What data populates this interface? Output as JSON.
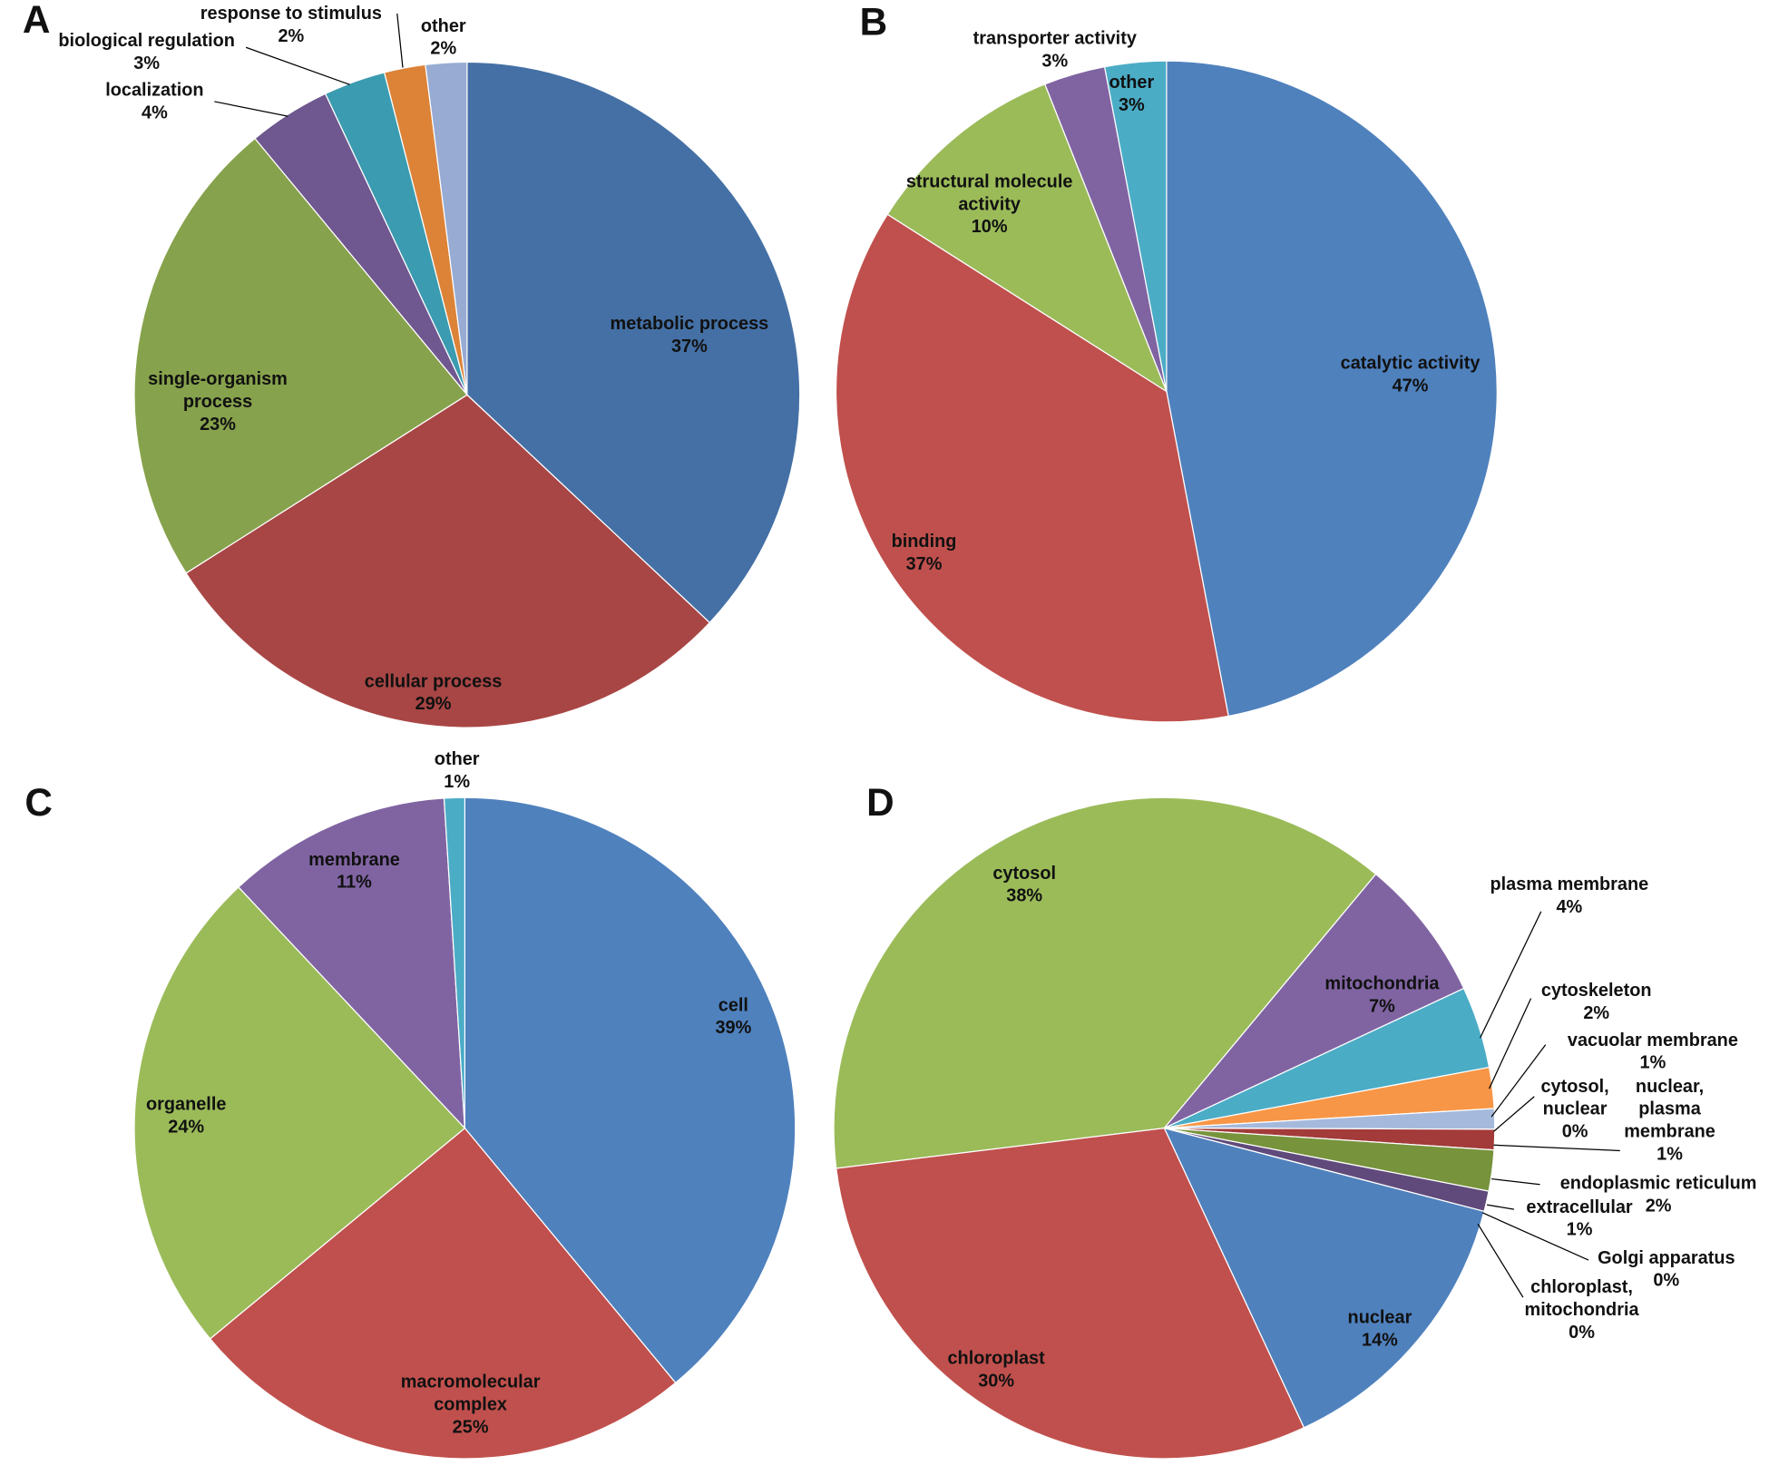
{
  "chart_data": [
    {
      "type": "pie",
      "panel": "A",
      "categories": [
        "metabolic process",
        "cellular process",
        "single-organism process",
        "localization",
        "biological regulation",
        "response to stimulus",
        "other"
      ],
      "values": [
        37,
        29,
        23,
        4,
        3,
        2,
        2
      ],
      "value_labels": [
        "37%",
        "29%",
        "23%",
        "4%",
        "3%",
        "2%",
        "2%"
      ],
      "colors": [
        "#4470a5",
        "#a84645",
        "#87a24c",
        "#6f578f",
        "#3b9bb0",
        "#dc8338",
        "#97abd3"
      ]
    },
    {
      "type": "pie",
      "panel": "B",
      "categories": [
        "catalytic activity",
        "binding",
        "structural molecule activity",
        "transporter activity",
        "other"
      ],
      "values": [
        47,
        37,
        10,
        3,
        3
      ],
      "value_labels": [
        "47%",
        "37%",
        "10%",
        "3%",
        "3%"
      ],
      "colors": [
        "#4f81bd",
        "#c0504d",
        "#9bbb59",
        "#8064a2",
        "#4bacc6"
      ]
    },
    {
      "type": "pie",
      "panel": "C",
      "categories": [
        "cell",
        "macromolecular complex",
        "organelle",
        "membrane",
        "other"
      ],
      "values": [
        39,
        25,
        24,
        11,
        1
      ],
      "value_labels": [
        "39%",
        "25%",
        "24%",
        "11%",
        "1%"
      ],
      "colors": [
        "#4f81bd",
        "#c0504d",
        "#9bbb59",
        "#8064a2",
        "#4bacc6"
      ]
    },
    {
      "type": "pie",
      "panel": "D",
      "categories": [
        "cytosol",
        "mitochondria",
        "plasma membrane",
        "cytoskeleton",
        "vacuolar membrane",
        "cytosol, nuclear",
        "nuclear, plasma membrane",
        "endoplasmic reticulum",
        "extracellular",
        "Golgi apparatus",
        "chloroplast, mitochondria",
        "nuclear",
        "chloroplast"
      ],
      "values": [
        38,
        7,
        4,
        2,
        1,
        0,
        1,
        2,
        1,
        0,
        0,
        14,
        30
      ],
      "value_labels": [
        "38%",
        "7%",
        "4%",
        "2%",
        "1%",
        "0%",
        "1%",
        "2%",
        "1%",
        "0%",
        "0%",
        "14%",
        "30%"
      ],
      "colors": [
        "#9bbb59",
        "#8064a2",
        "#4bacc6",
        "#f79646",
        "#a5b9dc",
        "#2c4d75",
        "#a23b3a",
        "#77933c",
        "#604a7b",
        "#31849b",
        "#e36c09",
        "#4f81bd",
        "#c0504d"
      ]
    }
  ]
}
